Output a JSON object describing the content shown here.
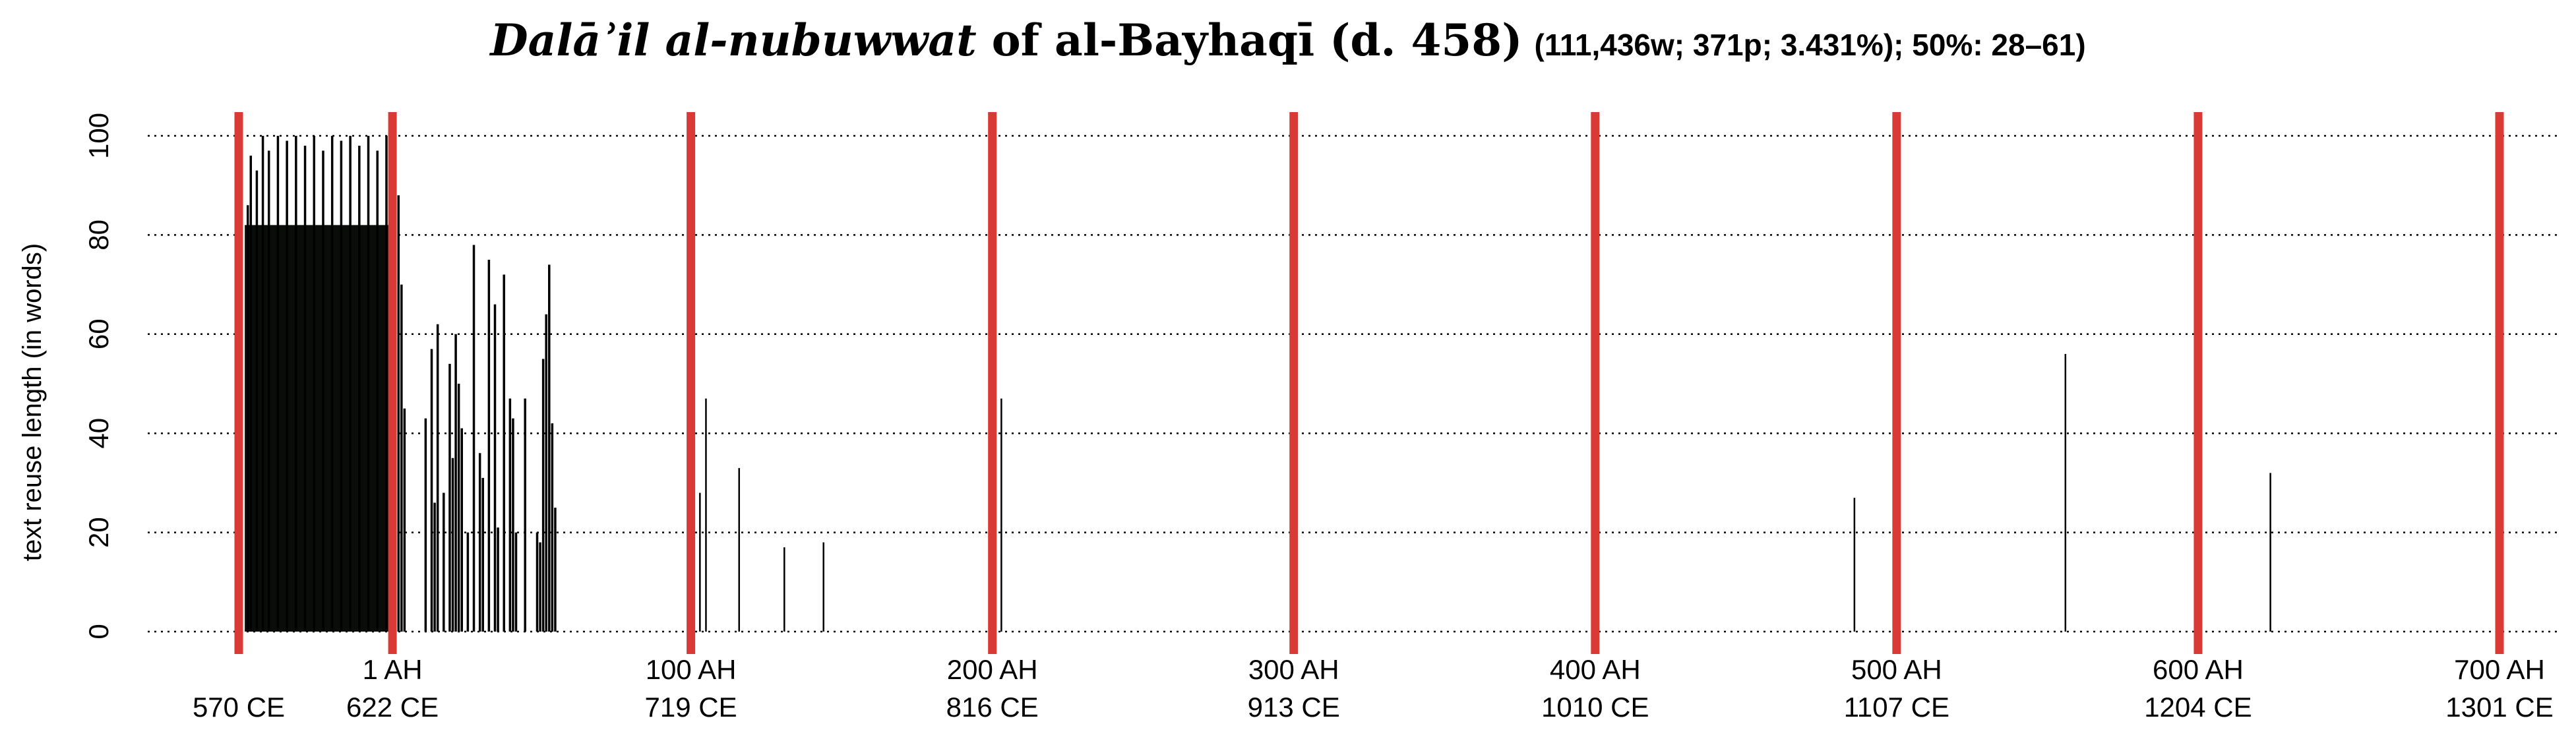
{
  "chart_data": {
    "type": "bar",
    "title": {
      "book": "Dalāʾil al-nubuwwat",
      "rest": " of al-Bayhaqī (d. 458)",
      "stats": "(111,436w; 371p; 3.431%); 50%: 28–61)"
    },
    "xlabel": "",
    "ylabel": "text reuse length (in words)",
    "ylim": [
      0,
      100
    ],
    "xlim": [
      -50,
      700
    ],
    "yticks": [
      0,
      20,
      40,
      60,
      80,
      100
    ],
    "grid": "horizontal-dotted",
    "xticks": [
      {
        "x": -50,
        "ah": "",
        "ce": "570 CE"
      },
      {
        "x": 1,
        "ah": "1 AH",
        "ce": "622 CE"
      },
      {
        "x": 100,
        "ah": "100 AH",
        "ce": "719 CE"
      },
      {
        "x": 200,
        "ah": "200 AH",
        "ce": "816 CE"
      },
      {
        "x": 300,
        "ah": "300 AH",
        "ce": "913 CE"
      },
      {
        "x": 400,
        "ah": "400 AH",
        "ce": "1010 CE"
      },
      {
        "x": 500,
        "ah": "500 AH",
        "ce": "1107 CE"
      },
      {
        "x": 600,
        "ah": "600 AH",
        "ce": "1204 CE"
      },
      {
        "x": 700,
        "ah": "700 AH",
        "ce": "1301 CE"
      }
    ],
    "reference_lines": [
      -50,
      1,
      100,
      200,
      300,
      400,
      500,
      600,
      700
    ],
    "reference_line_color": "#d93a36",
    "bar_color": "#000000",
    "dense_block": {
      "x_range": [
        -48,
        1
      ],
      "top": 100
    },
    "bars": [
      {
        "x": -47,
        "y": 86
      },
      {
        "x": -46,
        "y": 96
      },
      {
        "x": -44,
        "y": 93
      },
      {
        "x": -42,
        "y": 100
      },
      {
        "x": -40,
        "y": 97
      },
      {
        "x": -37,
        "y": 100
      },
      {
        "x": -34,
        "y": 99
      },
      {
        "x": -31,
        "y": 100
      },
      {
        "x": -28,
        "y": 98
      },
      {
        "x": -25,
        "y": 100
      },
      {
        "x": -22,
        "y": 97
      },
      {
        "x": -19,
        "y": 100
      },
      {
        "x": -16,
        "y": 99
      },
      {
        "x": -13,
        "y": 100
      },
      {
        "x": -10,
        "y": 98
      },
      {
        "x": -7,
        "y": 100
      },
      {
        "x": -4,
        "y": 97
      },
      {
        "x": -1,
        "y": 100
      },
      {
        "x": 2,
        "y": 99
      },
      {
        "x": 3,
        "y": 88
      },
      {
        "x": 4,
        "y": 70
      },
      {
        "x": 5,
        "y": 45
      },
      {
        "x": 12,
        "y": 43
      },
      {
        "x": 14,
        "y": 57
      },
      {
        "x": 15,
        "y": 26
      },
      {
        "x": 16,
        "y": 62
      },
      {
        "x": 18,
        "y": 28
      },
      {
        "x": 20,
        "y": 54
      },
      {
        "x": 21,
        "y": 35
      },
      {
        "x": 22,
        "y": 60
      },
      {
        "x": 23,
        "y": 50
      },
      {
        "x": 24,
        "y": 41
      },
      {
        "x": 26,
        "y": 20
      },
      {
        "x": 28,
        "y": 78
      },
      {
        "x": 30,
        "y": 36
      },
      {
        "x": 31,
        "y": 31
      },
      {
        "x": 33,
        "y": 75
      },
      {
        "x": 35,
        "y": 66
      },
      {
        "x": 36,
        "y": 21
      },
      {
        "x": 38,
        "y": 72
      },
      {
        "x": 40,
        "y": 47
      },
      {
        "x": 41,
        "y": 43
      },
      {
        "x": 42,
        "y": 20
      },
      {
        "x": 45,
        "y": 47
      },
      {
        "x": 49,
        "y": 20
      },
      {
        "x": 50,
        "y": 18
      },
      {
        "x": 51,
        "y": 55
      },
      {
        "x": 52,
        "y": 64
      },
      {
        "x": 53,
        "y": 74
      },
      {
        "x": 54,
        "y": 42
      },
      {
        "x": 55,
        "y": 25
      },
      {
        "x": 103,
        "y": 28
      },
      {
        "x": 105,
        "y": 47
      },
      {
        "x": 116,
        "y": 33
      },
      {
        "x": 131,
        "y": 17
      },
      {
        "x": 144,
        "y": 18
      },
      {
        "x": 203,
        "y": 47
      },
      {
        "x": 486,
        "y": 27
      },
      {
        "x": 556,
        "y": 56
      },
      {
        "x": 624,
        "y": 32
      }
    ]
  }
}
